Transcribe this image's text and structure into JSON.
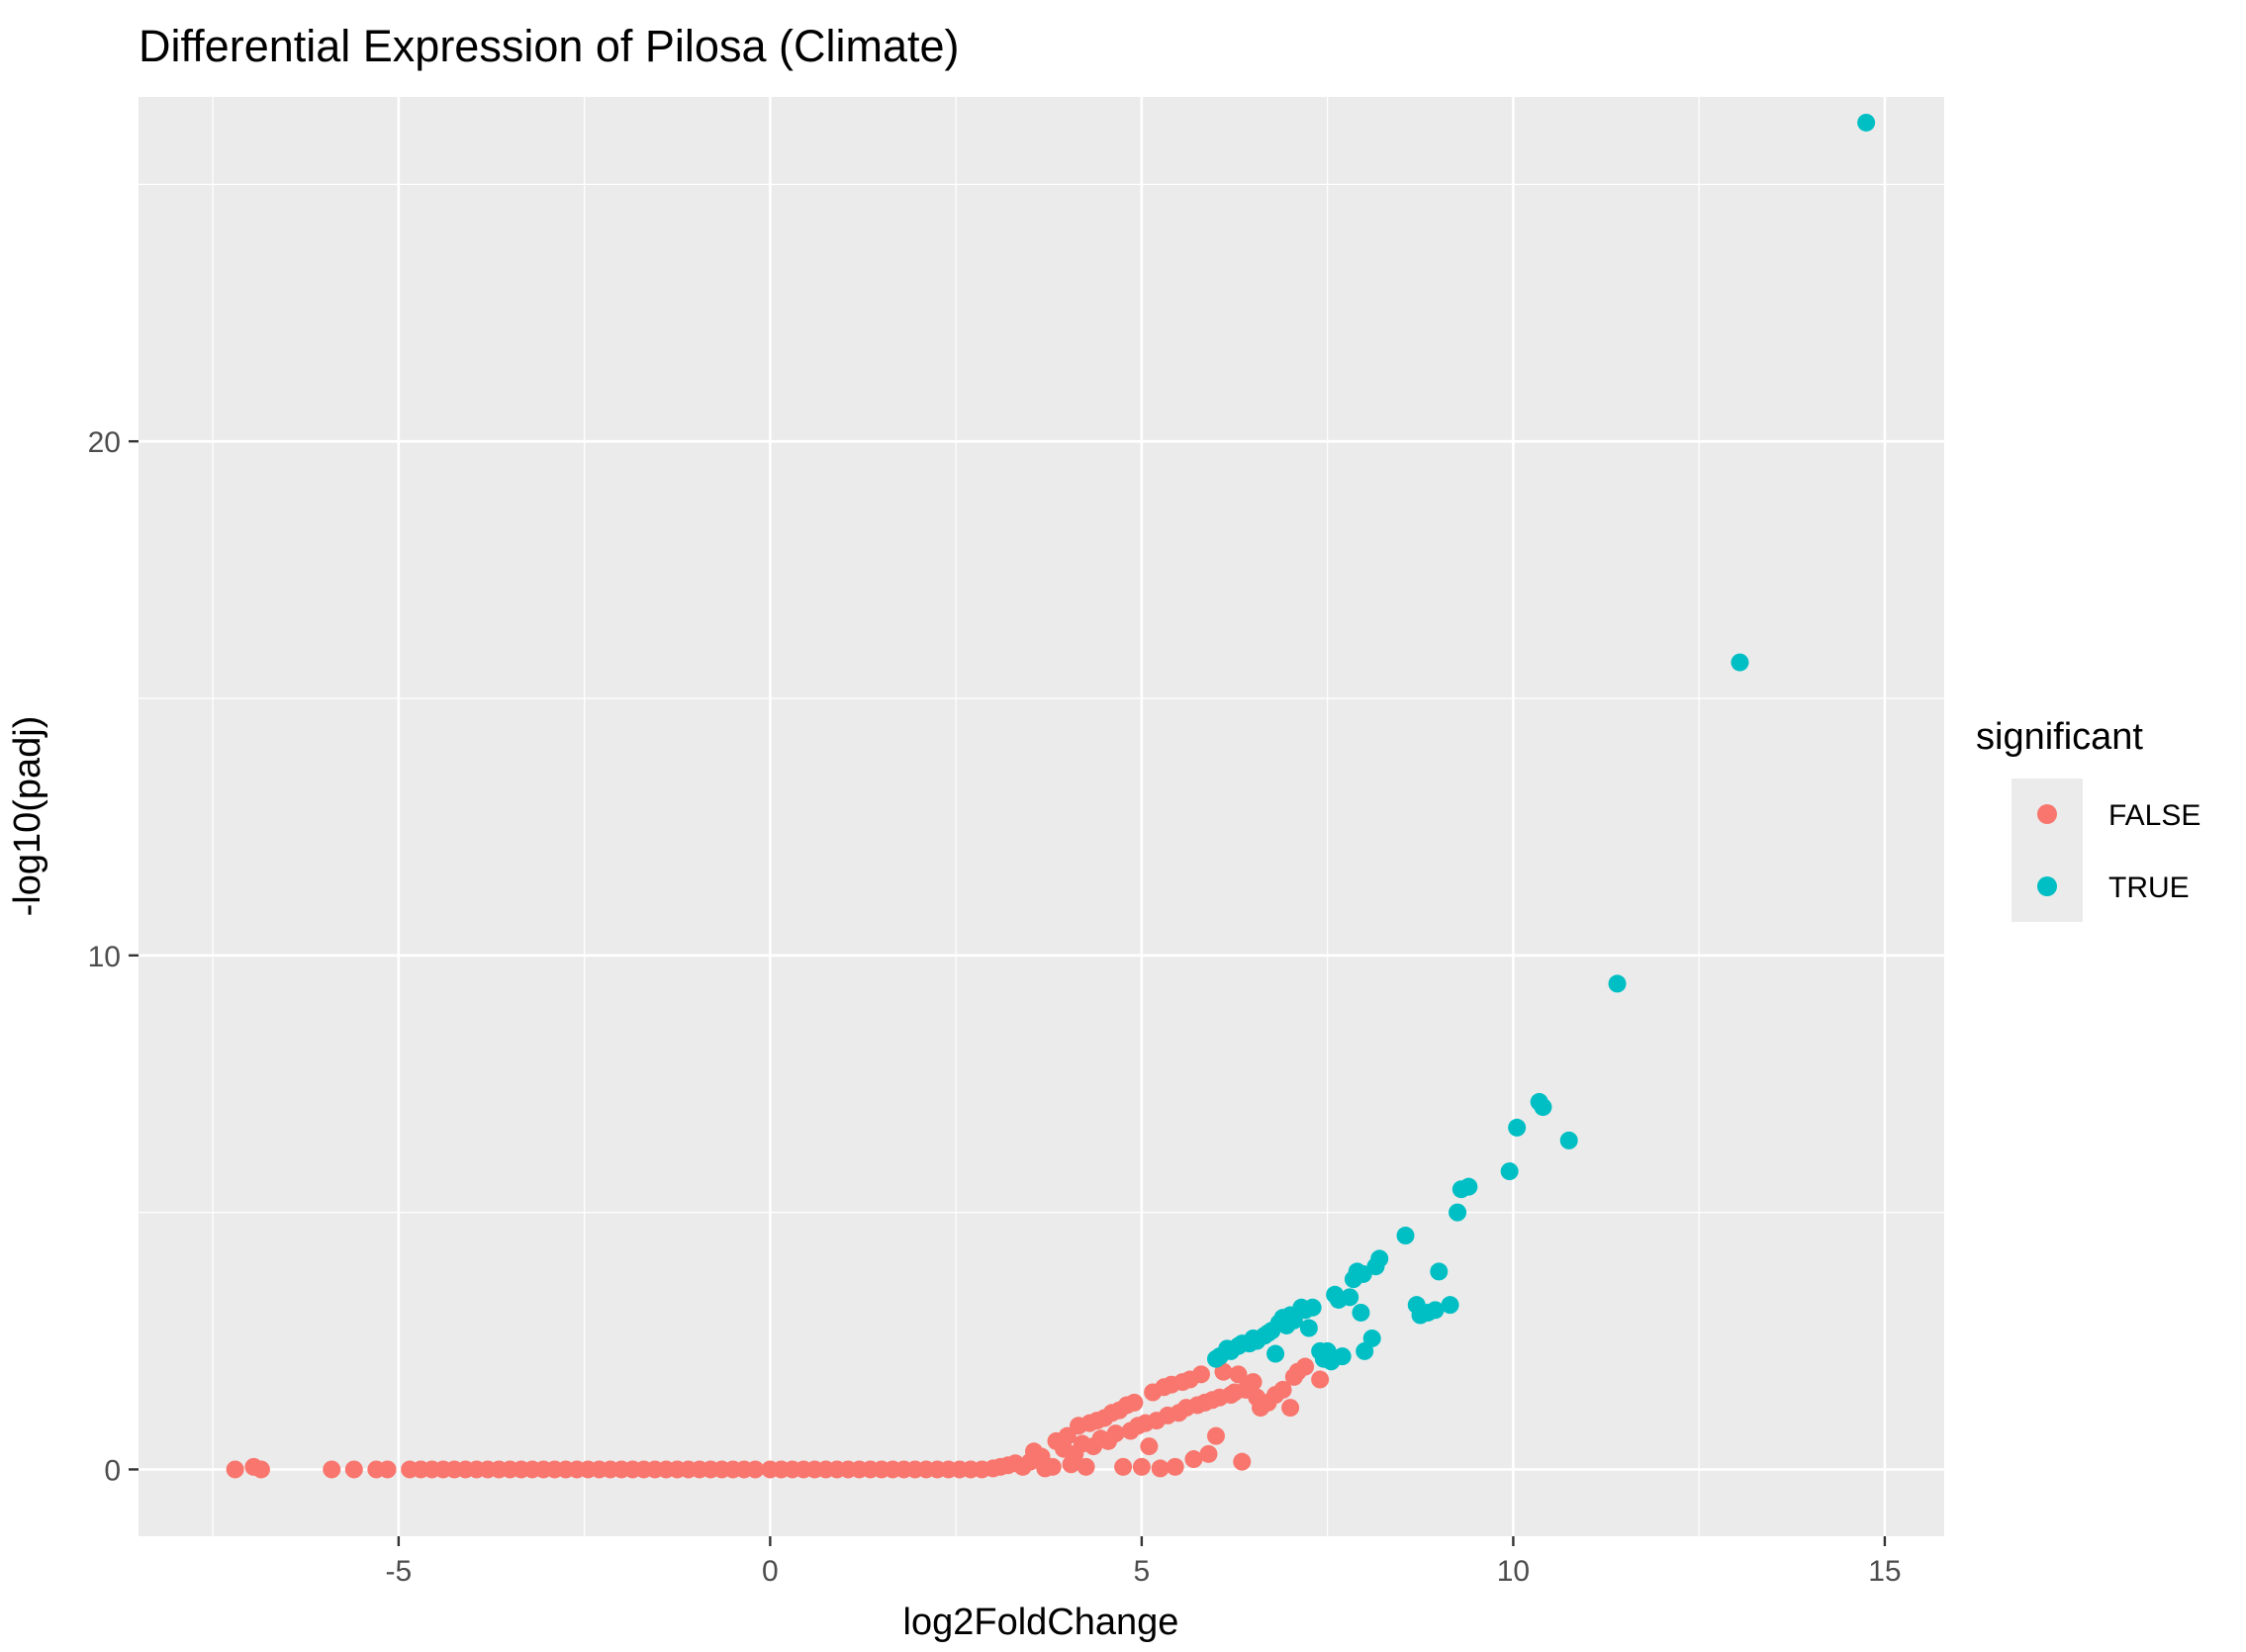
{
  "chart_data": {
    "type": "scatter",
    "title": "Differential Expression of Pilosa (Climate)",
    "xlabel": "log2FoldChange",
    "ylabel": "-log10(padj)",
    "xlim": [
      -8.5,
      15.8
    ],
    "ylim": [
      -1.3,
      26.7
    ],
    "x_ticks": [
      -5,
      0,
      5,
      10,
      15
    ],
    "x_tick_labels": [
      "-5",
      "0",
      "5",
      "10",
      "15"
    ],
    "y_ticks": [
      0,
      10,
      20
    ],
    "y_tick_labels": [
      "0",
      "10",
      "20"
    ],
    "grid": true,
    "legend": {
      "title": "significant",
      "position": "right",
      "entries": [
        {
          "label": "FALSE",
          "color": "#F8766D"
        },
        {
          "label": "TRUE",
          "color": "#00BFC4"
        }
      ]
    },
    "series": [
      {
        "name": "FALSE",
        "color": "#F8766D",
        "points": [
          [
            -7.2,
            0
          ],
          [
            -6.95,
            0.05
          ],
          [
            -6.85,
            0
          ],
          [
            -5.9,
            0
          ],
          [
            -5.6,
            0
          ],
          [
            -5.3,
            0
          ],
          [
            -5.15,
            0
          ],
          [
            -4.85,
            0
          ],
          [
            -4.7,
            0
          ],
          [
            -4.55,
            0
          ],
          [
            -4.4,
            0
          ],
          [
            -4.25,
            0
          ],
          [
            -4.1,
            0
          ],
          [
            -3.95,
            0
          ],
          [
            -3.8,
            0
          ],
          [
            -3.65,
            0
          ],
          [
            -3.5,
            0
          ],
          [
            -3.35,
            0
          ],
          [
            -3.2,
            0
          ],
          [
            -3.05,
            0
          ],
          [
            -2.9,
            0
          ],
          [
            -2.75,
            0
          ],
          [
            -2.6,
            0
          ],
          [
            -2.45,
            0
          ],
          [
            -2.3,
            0
          ],
          [
            -2.15,
            0
          ],
          [
            -2.0,
            0
          ],
          [
            -1.85,
            0
          ],
          [
            -1.7,
            0
          ],
          [
            -1.55,
            0
          ],
          [
            -1.4,
            0
          ],
          [
            -1.25,
            0
          ],
          [
            -1.1,
            0
          ],
          [
            -0.95,
            0
          ],
          [
            -0.8,
            0
          ],
          [
            -0.65,
            0
          ],
          [
            -0.5,
            0
          ],
          [
            -0.35,
            0
          ],
          [
            -0.2,
            0
          ],
          [
            0.0,
            0
          ],
          [
            0.15,
            0
          ],
          [
            0.3,
            0
          ],
          [
            0.45,
            0
          ],
          [
            0.6,
            0
          ],
          [
            0.75,
            0
          ],
          [
            0.9,
            0
          ],
          [
            1.05,
            0
          ],
          [
            1.2,
            0
          ],
          [
            1.35,
            0
          ],
          [
            1.5,
            0
          ],
          [
            1.65,
            0
          ],
          [
            1.8,
            0
          ],
          [
            1.95,
            0
          ],
          [
            2.1,
            0
          ],
          [
            2.25,
            0
          ],
          [
            2.4,
            0
          ],
          [
            2.55,
            0
          ],
          [
            2.7,
            0
          ],
          [
            2.85,
            0
          ],
          [
            3.0,
            0.02
          ],
          [
            3.1,
            0.05
          ],
          [
            3.2,
            0.08
          ],
          [
            3.3,
            0.12
          ],
          [
            3.4,
            0.05
          ],
          [
            3.5,
            0.15
          ],
          [
            3.55,
            0.35
          ],
          [
            3.65,
            0.25
          ],
          [
            3.7,
            0.02
          ],
          [
            3.8,
            0.05
          ],
          [
            3.85,
            0.55
          ],
          [
            3.95,
            0.4
          ],
          [
            4.0,
            0.65
          ],
          [
            4.05,
            0.1
          ],
          [
            4.1,
            0.3
          ],
          [
            4.15,
            0.85
          ],
          [
            4.2,
            0.5
          ],
          [
            4.25,
            0.05
          ],
          [
            4.3,
            0.9
          ],
          [
            4.35,
            0.45
          ],
          [
            4.4,
            0.95
          ],
          [
            4.45,
            0.6
          ],
          [
            4.5,
            1.0
          ],
          [
            4.55,
            0.55
          ],
          [
            4.6,
            1.1
          ],
          [
            4.65,
            0.7
          ],
          [
            4.7,
            1.15
          ],
          [
            4.75,
            0.05
          ],
          [
            4.8,
            1.25
          ],
          [
            4.85,
            0.75
          ],
          [
            4.9,
            1.3
          ],
          [
            4.95,
            0.85
          ],
          [
            5.0,
            0.05
          ],
          [
            5.05,
            0.9
          ],
          [
            5.1,
            0.45
          ],
          [
            5.15,
            1.5
          ],
          [
            5.2,
            0.95
          ],
          [
            5.25,
            0.02
          ],
          [
            5.3,
            1.6
          ],
          [
            5.35,
            1.05
          ],
          [
            5.4,
            1.65
          ],
          [
            5.45,
            0.05
          ],
          [
            5.5,
            1.1
          ],
          [
            5.55,
            1.7
          ],
          [
            5.6,
            1.2
          ],
          [
            5.65,
            1.75
          ],
          [
            5.7,
            0.2
          ],
          [
            5.75,
            1.25
          ],
          [
            5.8,
            1.85
          ],
          [
            5.85,
            1.3
          ],
          [
            5.9,
            0.3
          ],
          [
            5.95,
            1.35
          ],
          [
            6.0,
            0.65
          ],
          [
            6.05,
            1.4
          ],
          [
            6.1,
            1.9
          ],
          [
            6.2,
            1.45
          ],
          [
            6.25,
            1.5
          ],
          [
            6.3,
            1.85
          ],
          [
            6.35,
            0.15
          ],
          [
            6.4,
            1.55
          ],
          [
            6.45,
            1.6
          ],
          [
            6.5,
            1.7
          ],
          [
            6.55,
            1.4
          ],
          [
            6.6,
            1.2
          ],
          [
            6.7,
            1.3
          ],
          [
            6.8,
            1.45
          ],
          [
            6.9,
            1.55
          ],
          [
            7.0,
            1.2
          ],
          [
            7.05,
            1.8
          ],
          [
            7.1,
            1.9
          ],
          [
            7.2,
            2.0
          ],
          [
            7.4,
            1.75
          ]
        ]
      },
      {
        "name": "TRUE",
        "color": "#00BFC4",
        "points": [
          [
            14.75,
            26.2
          ],
          [
            13.05,
            15.7
          ],
          [
            11.4,
            9.45
          ],
          [
            10.75,
            6.4
          ],
          [
            10.4,
            7.05
          ],
          [
            10.35,
            7.15
          ],
          [
            10.05,
            6.65
          ],
          [
            9.95,
            5.8
          ],
          [
            9.4,
            5.5
          ],
          [
            9.3,
            5.45
          ],
          [
            9.25,
            5.0
          ],
          [
            9.15,
            3.2
          ],
          [
            9.0,
            3.85
          ],
          [
            8.95,
            3.1
          ],
          [
            8.85,
            3.05
          ],
          [
            8.75,
            3.0
          ],
          [
            8.7,
            3.2
          ],
          [
            8.55,
            4.55
          ],
          [
            8.2,
            4.1
          ],
          [
            8.15,
            3.95
          ],
          [
            8.1,
            2.55
          ],
          [
            8.0,
            2.3
          ],
          [
            7.98,
            3.8
          ],
          [
            7.95,
            3.05
          ],
          [
            7.9,
            3.85
          ],
          [
            7.85,
            3.7
          ],
          [
            7.8,
            3.35
          ],
          [
            7.7,
            2.2
          ],
          [
            7.65,
            3.3
          ],
          [
            7.6,
            3.4
          ],
          [
            7.55,
            2.1
          ],
          [
            7.5,
            2.3
          ],
          [
            7.45,
            2.15
          ],
          [
            7.4,
            2.3
          ],
          [
            7.3,
            3.15
          ],
          [
            7.25,
            2.75
          ],
          [
            7.2,
            3.1
          ],
          [
            7.15,
            3.15
          ],
          [
            7.05,
            2.9
          ],
          [
            7.0,
            3.0
          ],
          [
            6.95,
            2.8
          ],
          [
            6.9,
            2.95
          ],
          [
            6.85,
            2.85
          ],
          [
            6.8,
            2.25
          ],
          [
            6.75,
            2.7
          ],
          [
            6.7,
            2.65
          ],
          [
            6.65,
            2.6
          ],
          [
            6.55,
            2.5
          ],
          [
            6.5,
            2.55
          ],
          [
            6.45,
            2.45
          ],
          [
            6.35,
            2.45
          ],
          [
            6.3,
            2.4
          ],
          [
            6.2,
            2.3
          ],
          [
            6.15,
            2.35
          ],
          [
            6.05,
            2.2
          ],
          [
            6.0,
            2.15
          ]
        ]
      }
    ]
  }
}
